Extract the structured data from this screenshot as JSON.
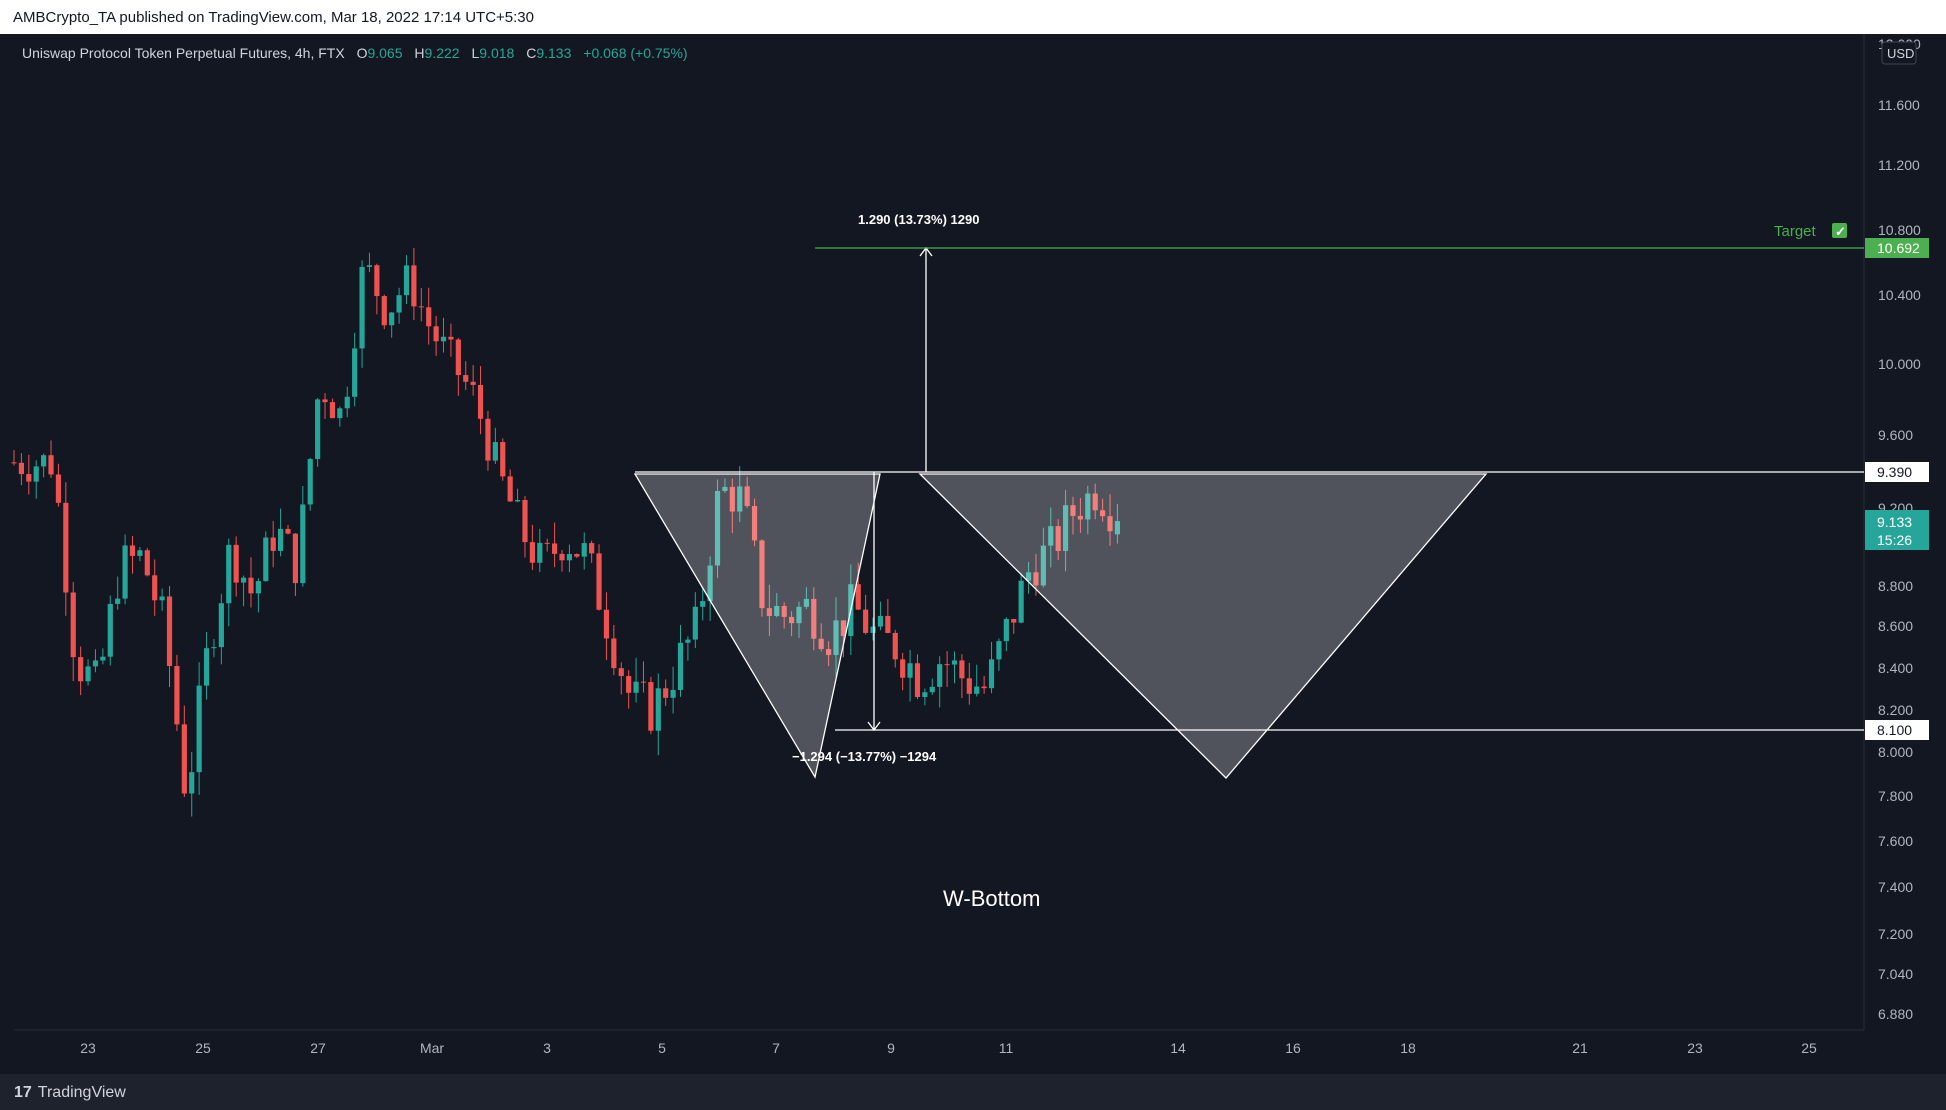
{
  "header": {
    "publisher": "AMBCrypto_TA published on TradingView.com, Mar 18, 2022 17:14 UTC+5:30"
  },
  "legend": {
    "symbol": "Uniswap Protocol Token Perpetual Futures, 4h, FTX",
    "o_label": "O",
    "o_value": "9.065",
    "h_label": "H",
    "h_value": "9.222",
    "l_label": "L",
    "l_value": "9.018",
    "c_label": "C",
    "c_value": "9.133",
    "change": "+0.068 (+0.75%)"
  },
  "price_axis": {
    "currency": "USD",
    "ticks": [
      "12.000",
      "11.600",
      "11.200",
      "10.800",
      "10.400",
      "10.000",
      "9.600",
      "9.200",
      "8.800",
      "8.600",
      "8.400",
      "8.200",
      "8.000",
      "7.800",
      "7.600",
      "7.400",
      "7.200",
      "7.040",
      "6.880"
    ],
    "badge_target": "10.692",
    "badge_resistance": "9.390",
    "badge_current": "9.133",
    "badge_countdown": "15:26",
    "badge_support": "8.100"
  },
  "time_axis": {
    "labels": [
      "23",
      "25",
      "27",
      "Mar",
      "3",
      "5",
      "7",
      "9",
      "11",
      "14",
      "16",
      "18",
      "21",
      "23",
      "25"
    ]
  },
  "annotations": {
    "target_label": "Target",
    "target_check": "✓",
    "up_measure": "1.290 (13.73%) 1290",
    "down_measure": "−1.294 (−13.77%) −1294",
    "pattern_name": "W-Bottom"
  },
  "footer": {
    "brand": "TradingView",
    "brand_mark": "17"
  },
  "colors": {
    "background": "#131722",
    "up": "#26a69a",
    "down": "#ef5350",
    "target_line": "#4caf50",
    "level_line": "#ffffff"
  },
  "chart_data": {
    "type": "candlestick",
    "title": "Uniswap Protocol Token Perpetual Futures, 4h, FTX",
    "xlabel": "",
    "ylabel": "",
    "ylim": [
      6.8,
      12.1
    ],
    "x_range": [
      "2022-02-21",
      "2022-03-26"
    ],
    "levels": [
      {
        "name": "Target",
        "value": 10.692
      },
      {
        "name": "Resistance",
        "value": 9.39
      },
      {
        "name": "Support",
        "value": 8.1
      }
    ],
    "last": {
      "open": 9.065,
      "high": 9.222,
      "low": 9.018,
      "close": 9.133
    },
    "path": [
      [
        "2022-02-22",
        9.45
      ],
      [
        "2022-02-22T12:00",
        8.45
      ],
      [
        "2022-02-23",
        8.3
      ],
      [
        "2022-02-23T12:00",
        8.9
      ],
      [
        "2022-02-24",
        8.95
      ],
      [
        "2022-02-24T12:00",
        8.6
      ],
      [
        "2022-02-25",
        7.8
      ],
      [
        "2022-02-25T12:00",
        8.5
      ],
      [
        "2022-02-26",
        9.0
      ],
      [
        "2022-02-26T12:00",
        8.75
      ],
      [
        "2022-02-27",
        9.1
      ],
      [
        "2022-02-27T12:00",
        8.9
      ],
      [
        "2022-02-28",
        9.9
      ],
      [
        "2022-02-28T12:00",
        9.7
      ],
      [
        "2022-03-01",
        10.6
      ],
      [
        "2022-03-01T12:00",
        10.3
      ],
      [
        "2022-03-02",
        10.5
      ],
      [
        "2022-03-02T12:00",
        10.2
      ],
      [
        "2022-03-03",
        10.0
      ],
      [
        "2022-03-03T12:00",
        9.8
      ],
      [
        "2022-03-04",
        9.4
      ],
      [
        "2022-03-04T12:00",
        9.1
      ],
      [
        "2022-03-05",
        8.9
      ],
      [
        "2022-03-05T12:00",
        9.05
      ],
      [
        "2022-03-06",
        8.95
      ],
      [
        "2022-03-06T12:00",
        8.6
      ],
      [
        "2022-03-07",
        8.25
      ],
      [
        "2022-03-07T12:00",
        8.2
      ],
      [
        "2022-03-08",
        8.4
      ],
      [
        "2022-03-08T12:00",
        8.6
      ],
      [
        "2022-03-09",
        9.3
      ],
      [
        "2022-03-09T12:00",
        9.25
      ],
      [
        "2022-03-10",
        8.7
      ],
      [
        "2022-03-10T12:00",
        8.65
      ],
      [
        "2022-03-11",
        8.7
      ],
      [
        "2022-03-11T12:00",
        8.55
      ],
      [
        "2022-03-12",
        8.7
      ],
      [
        "2022-03-12T12:00",
        8.55
      ],
      [
        "2022-03-13",
        8.5
      ],
      [
        "2022-03-13T12:00",
        8.35
      ],
      [
        "2022-03-14",
        8.45
      ],
      [
        "2022-03-14T12:00",
        8.35
      ],
      [
        "2022-03-15",
        8.3
      ],
      [
        "2022-03-15T12:00",
        8.6
      ],
      [
        "2022-03-16",
        8.9
      ],
      [
        "2022-03-16T12:00",
        9.0
      ],
      [
        "2022-03-17",
        9.2
      ],
      [
        "2022-03-17T12:00",
        9.3
      ],
      [
        "2022-03-18",
        9.133
      ]
    ]
  }
}
